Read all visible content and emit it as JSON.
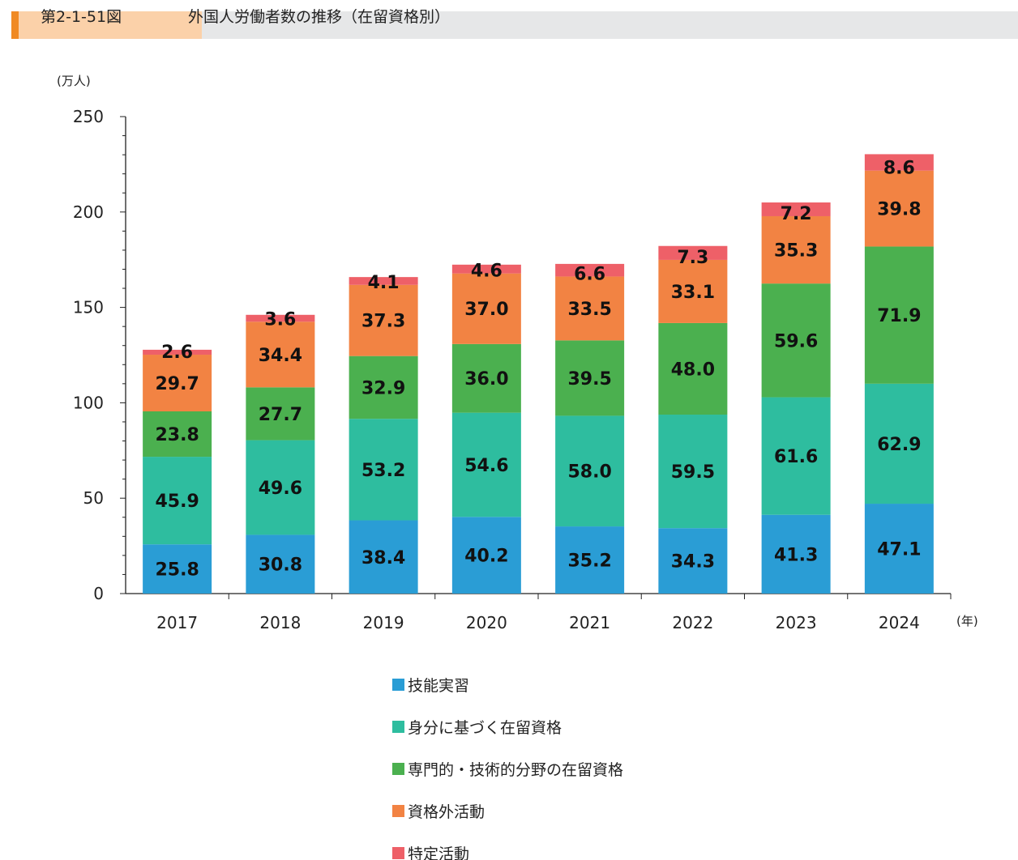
{
  "header": {
    "figure_number": "第2-1-51図",
    "title": "外国人労働者数の推移（在留資格別）"
  },
  "chart_data": {
    "type": "bar",
    "stacked": true,
    "title": "外国人労働者数の推移（在留資格別）",
    "ylabel": "(万人)",
    "xlabel": "(年)",
    "ylim": [
      0,
      250
    ],
    "yticks": [
      0,
      50,
      100,
      150,
      200,
      250
    ],
    "categories": [
      "2017",
      "2018",
      "2019",
      "2020",
      "2021",
      "2022",
      "2023",
      "2024"
    ],
    "series": [
      {
        "name": "技能実習",
        "color": "#2a9dd5",
        "values": [
          25.8,
          30.8,
          38.4,
          40.2,
          35.2,
          34.3,
          41.3,
          47.1
        ]
      },
      {
        "name": "身分に基づく在留資格",
        "color": "#2ebd9f",
        "values": [
          45.9,
          49.6,
          53.2,
          54.6,
          58.0,
          59.5,
          61.6,
          62.9
        ]
      },
      {
        "name": "専門的・技術的分野の在留資格",
        "color": "#4bb04f",
        "values": [
          23.8,
          27.7,
          32.9,
          36.0,
          39.5,
          48.0,
          59.6,
          71.9
        ]
      },
      {
        "name": "資格外活動",
        "color": "#f28343",
        "values": [
          29.7,
          34.4,
          37.3,
          37.0,
          33.5,
          33.1,
          35.3,
          39.8
        ]
      },
      {
        "name": "特定活動",
        "color": "#ee6068",
        "values": [
          2.6,
          3.6,
          4.1,
          4.6,
          6.6,
          7.3,
          7.2,
          8.6
        ]
      }
    ],
    "grid": false,
    "legend": "bottom"
  }
}
